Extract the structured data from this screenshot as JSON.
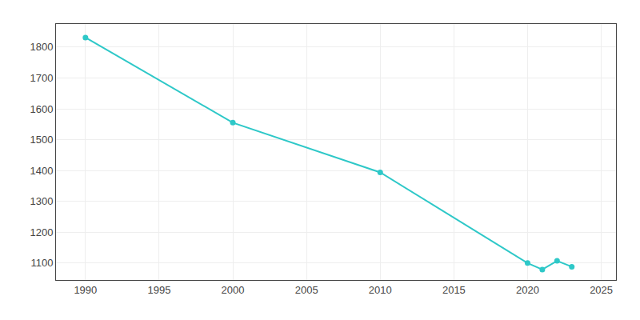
{
  "chart_data": {
    "type": "line",
    "x": [
      1990,
      2000,
      2010,
      2020,
      2021,
      2022,
      2023
    ],
    "values": [
      1831,
      1555,
      1394,
      1100,
      1079,
      1107,
      1088
    ],
    "color": "#2ec8c8",
    "marker": "circle",
    "xlim": [
      1988,
      2026
    ],
    "ylim": [
      1045,
      1875
    ],
    "xticks": [
      1990,
      1995,
      2000,
      2005,
      2010,
      2015,
      2020,
      2025
    ],
    "yticks": [
      1100,
      1200,
      1300,
      1400,
      1500,
      1600,
      1700,
      1800
    ],
    "grid": true
  }
}
